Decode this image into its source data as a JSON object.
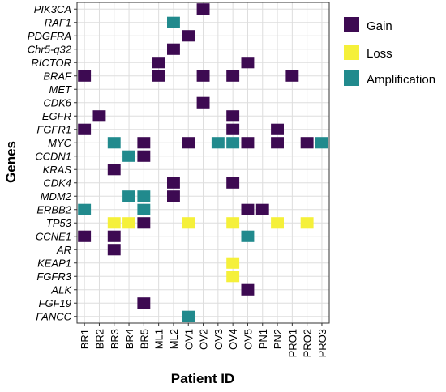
{
  "chart_data": {
    "type": "heatmap",
    "xlabel": "Patient ID",
    "ylabel": "Genes",
    "patients": [
      "BR1",
      "BR2",
      "BR3",
      "BR4",
      "BR5",
      "ML1",
      "ML2",
      "OV1",
      "OV2",
      "OV3",
      "OV4",
      "OV5",
      "PN1",
      "PN2",
      "PRO1",
      "PRO2",
      "PRO3"
    ],
    "genes": [
      "PIK3CA",
      "RAF1",
      "PDGFRA",
      "Chr5-q32",
      "RICTOR",
      "BRAF",
      "MET",
      "CDK6",
      "EGFR",
      "FGFR1",
      "MYC",
      "CCDN1",
      "KRAS",
      "CDK4",
      "MDM2",
      "ERBB2",
      "TP53",
      "CCNE1",
      "AR",
      "KEAP1",
      "FGFR3",
      "ALK",
      "FGF19",
      "FANCC"
    ],
    "legend": [
      {
        "key": "gain",
        "label": "Gain",
        "color": "#3d0a52"
      },
      {
        "key": "loss",
        "label": "Loss",
        "color": "#f5f03a"
      },
      {
        "key": "amplification",
        "label": "Amplification",
        "color": "#218a8d"
      }
    ],
    "legend_position": "right",
    "grid": true,
    "cells": [
      {
        "gene": "PIK3CA",
        "patient": "OV2",
        "type": "gain"
      },
      {
        "gene": "RAF1",
        "patient": "ML2",
        "type": "amplification"
      },
      {
        "gene": "PDGFRA",
        "patient": "OV1",
        "type": "gain"
      },
      {
        "gene": "Chr5-q32",
        "patient": "ML2",
        "type": "gain"
      },
      {
        "gene": "RICTOR",
        "patient": "ML1",
        "type": "gain"
      },
      {
        "gene": "RICTOR",
        "patient": "OV5",
        "type": "gain"
      },
      {
        "gene": "BRAF",
        "patient": "BR1",
        "type": "gain"
      },
      {
        "gene": "BRAF",
        "patient": "ML1",
        "type": "gain"
      },
      {
        "gene": "BRAF",
        "patient": "OV2",
        "type": "gain"
      },
      {
        "gene": "BRAF",
        "patient": "OV4",
        "type": "gain"
      },
      {
        "gene": "BRAF",
        "patient": "PRO1",
        "type": "gain"
      },
      {
        "gene": "CDK6",
        "patient": "OV2",
        "type": "gain"
      },
      {
        "gene": "EGFR",
        "patient": "BR2",
        "type": "gain"
      },
      {
        "gene": "EGFR",
        "patient": "OV4",
        "type": "gain"
      },
      {
        "gene": "FGFR1",
        "patient": "BR1",
        "type": "gain"
      },
      {
        "gene": "FGFR1",
        "patient": "OV4",
        "type": "gain"
      },
      {
        "gene": "FGFR1",
        "patient": "PN2",
        "type": "gain"
      },
      {
        "gene": "MYC",
        "patient": "BR3",
        "type": "amplification"
      },
      {
        "gene": "MYC",
        "patient": "BR5",
        "type": "gain"
      },
      {
        "gene": "MYC",
        "patient": "OV1",
        "type": "gain"
      },
      {
        "gene": "MYC",
        "patient": "OV3",
        "type": "amplification"
      },
      {
        "gene": "MYC",
        "patient": "OV4",
        "type": "amplification"
      },
      {
        "gene": "MYC",
        "patient": "OV5",
        "type": "gain"
      },
      {
        "gene": "MYC",
        "patient": "PN2",
        "type": "gain"
      },
      {
        "gene": "MYC",
        "patient": "PRO2",
        "type": "gain"
      },
      {
        "gene": "MYC",
        "patient": "PRO3",
        "type": "amplification"
      },
      {
        "gene": "CCDN1",
        "patient": "BR4",
        "type": "amplification"
      },
      {
        "gene": "CCDN1",
        "patient": "BR5",
        "type": "gain"
      },
      {
        "gene": "KRAS",
        "patient": "BR3",
        "type": "gain"
      },
      {
        "gene": "CDK4",
        "patient": "ML2",
        "type": "gain"
      },
      {
        "gene": "CDK4",
        "patient": "OV4",
        "type": "gain"
      },
      {
        "gene": "MDM2",
        "patient": "BR4",
        "type": "amplification"
      },
      {
        "gene": "MDM2",
        "patient": "BR5",
        "type": "amplification"
      },
      {
        "gene": "MDM2",
        "patient": "ML2",
        "type": "gain"
      },
      {
        "gene": "ERBB2",
        "patient": "BR1",
        "type": "amplification"
      },
      {
        "gene": "ERBB2",
        "patient": "BR5",
        "type": "amplification"
      },
      {
        "gene": "ERBB2",
        "patient": "OV5",
        "type": "gain"
      },
      {
        "gene": "ERBB2",
        "patient": "PN1",
        "type": "gain"
      },
      {
        "gene": "TP53",
        "patient": "BR3",
        "type": "loss"
      },
      {
        "gene": "TP53",
        "patient": "BR4",
        "type": "loss"
      },
      {
        "gene": "TP53",
        "patient": "BR5",
        "type": "gain"
      },
      {
        "gene": "TP53",
        "patient": "OV1",
        "type": "loss"
      },
      {
        "gene": "TP53",
        "patient": "OV4",
        "type": "loss"
      },
      {
        "gene": "TP53",
        "patient": "PN2",
        "type": "loss"
      },
      {
        "gene": "TP53",
        "patient": "PRO2",
        "type": "loss"
      },
      {
        "gene": "CCNE1",
        "patient": "BR1",
        "type": "gain"
      },
      {
        "gene": "CCNE1",
        "patient": "BR3",
        "type": "gain"
      },
      {
        "gene": "CCNE1",
        "patient": "OV5",
        "type": "amplification"
      },
      {
        "gene": "AR",
        "patient": "BR3",
        "type": "gain"
      },
      {
        "gene": "KEAP1",
        "patient": "OV4",
        "type": "loss"
      },
      {
        "gene": "FGFR3",
        "patient": "OV4",
        "type": "loss"
      },
      {
        "gene": "ALK",
        "patient": "OV5",
        "type": "gain"
      },
      {
        "gene": "FGF19",
        "patient": "BR5",
        "type": "gain"
      },
      {
        "gene": "FANCC",
        "patient": "OV1",
        "type": "amplification"
      }
    ]
  }
}
